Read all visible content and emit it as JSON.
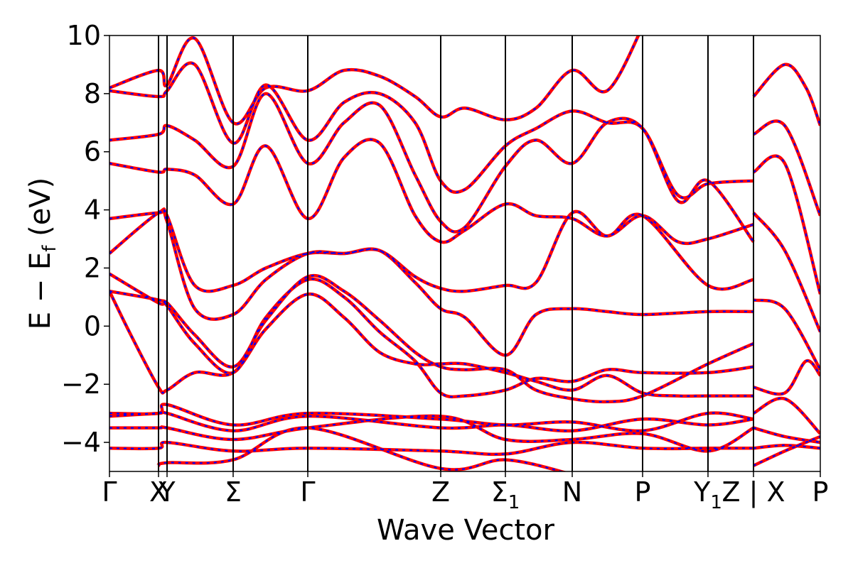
{
  "chart_data": {
    "type": "line",
    "xlabel": "Wave Vector",
    "ylabel": "E − E_f (eV)",
    "ylabel_parts": {
      "main": "E − E",
      "sub": "f",
      "unit": " (eV)"
    },
    "ylim": [
      -5,
      10
    ],
    "yticks": [
      -4,
      -2,
      0,
      2,
      4,
      6,
      8,
      10
    ],
    "ytick_labels": [
      "−4",
      "−2",
      "0",
      "2",
      "4",
      "6",
      "8",
      "10"
    ],
    "xlim": [
      0,
      1
    ],
    "grid": false,
    "kpoints": [
      {
        "label": "Γ",
        "sub": "",
        "x": 0.0
      },
      {
        "label": "X",
        "sub": "",
        "x": 0.069
      },
      {
        "label": "Y",
        "sub": "",
        "x": 0.081
      },
      {
        "label": "Σ",
        "sub": "",
        "x": 0.174
      },
      {
        "label": "Γ",
        "sub": "",
        "x": 0.279
      },
      {
        "label": "Z",
        "sub": "",
        "x": 0.466
      },
      {
        "label": "Σ",
        "sub": "1",
        "x": 0.557
      },
      {
        "label": "N",
        "sub": "",
        "x": 0.651
      },
      {
        "label": "P",
        "sub": "",
        "x": 0.75
      },
      {
        "label": "Y",
        "sub": "1",
        "x": 0.842
      },
      {
        "label": "Z | X",
        "sub": "",
        "x": 0.906
      },
      {
        "label": "P",
        "sub": "",
        "x": 1.0
      }
    ],
    "series": [
      {
        "color": "#ff0000",
        "style": "solid",
        "bands": [
          [
            [
              0,
              1.2
            ],
            [
              0.03,
              -0.3
            ],
            [
              0.069,
              -2.1
            ],
            [
              0.081,
              -2.2
            ],
            [
              0.12,
              -1.6
            ],
            [
              0.174,
              -1.6
            ],
            [
              0.22,
              -0.1
            ],
            [
              0.279,
              1.1
            ],
            [
              0.33,
              0.3
            ],
            [
              0.38,
              -0.9
            ],
            [
              0.43,
              -1.3
            ],
            [
              0.466,
              -1.3
            ],
            [
              0.5,
              -1.3
            ],
            [
              0.557,
              -1.6
            ],
            [
              0.6,
              -1.9
            ],
            [
              0.651,
              -2.2
            ],
            [
              0.7,
              -1.7
            ],
            [
              0.75,
              -2.3
            ],
            [
              0.8,
              -2.4
            ],
            [
              0.842,
              -2.4
            ],
            [
              0.906,
              -2.4
            ]
          ],
          [
            [
              0,
              1.8
            ],
            [
              0.069,
              0.8
            ],
            [
              0.081,
              0.8
            ],
            [
              0.12,
              -0.3
            ],
            [
              0.174,
              -1.4
            ],
            [
              0.22,
              0.2
            ],
            [
              0.279,
              1.7
            ],
            [
              0.33,
              1.2
            ],
            [
              0.38,
              0.2
            ],
            [
              0.43,
              -0.9
            ],
            [
              0.466,
              -1.4
            ],
            [
              0.5,
              -1.5
            ],
            [
              0.557,
              -1.5
            ],
            [
              0.6,
              -2.2
            ],
            [
              0.651,
              -2.5
            ],
            [
              0.7,
              -2.6
            ],
            [
              0.75,
              -2.4
            ],
            [
              0.842,
              -1.3
            ],
            [
              0.906,
              -0.6
            ]
          ],
          [
            [
              0,
              1.2
            ],
            [
              0.069,
              0.9
            ],
            [
              0.081,
              0.7
            ],
            [
              0.12,
              -0.6
            ],
            [
              0.174,
              -1.6
            ],
            [
              0.22,
              0.3
            ],
            [
              0.279,
              1.6
            ],
            [
              0.33,
              1.0
            ],
            [
              0.38,
              -0.2
            ],
            [
              0.43,
              -1.2
            ],
            [
              0.466,
              -2.3
            ],
            [
              0.5,
              -2.4
            ],
            [
              0.557,
              -2.2
            ],
            [
              0.6,
              -1.8
            ],
            [
              0.651,
              -1.9
            ],
            [
              0.7,
              -1.5
            ],
            [
              0.75,
              -1.6
            ],
            [
              0.842,
              -1.6
            ],
            [
              0.906,
              -1.4
            ]
          ],
          [
            [
              0,
              2.5
            ],
            [
              0.069,
              3.9
            ],
            [
              0.081,
              3.6
            ],
            [
              0.12,
              0.6
            ],
            [
              0.174,
              0.4
            ],
            [
              0.22,
              1.6
            ],
            [
              0.279,
              2.5
            ],
            [
              0.33,
              2.5
            ],
            [
              0.38,
              2.6
            ],
            [
              0.43,
              1.5
            ],
            [
              0.466,
              0.6
            ],
            [
              0.5,
              0.3
            ],
            [
              0.557,
              -1.0
            ],
            [
              0.6,
              0.4
            ],
            [
              0.651,
              0.6
            ],
            [
              0.7,
              0.5
            ],
            [
              0.75,
              0.4
            ],
            [
              0.842,
              0.5
            ],
            [
              0.906,
              0.5
            ]
          ],
          [
            [
              0,
              3.7
            ],
            [
              0.069,
              3.9
            ],
            [
              0.081,
              3.8
            ],
            [
              0.12,
              1.4
            ],
            [
              0.174,
              1.4
            ],
            [
              0.22,
              2.0
            ],
            [
              0.279,
              2.5
            ],
            [
              0.33,
              2.5
            ],
            [
              0.38,
              2.6
            ],
            [
              0.43,
              1.7
            ],
            [
              0.466,
              1.3
            ],
            [
              0.5,
              1.2
            ],
            [
              0.557,
              1.4
            ],
            [
              0.6,
              1.5
            ],
            [
              0.651,
              3.9
            ],
            [
              0.7,
              3.1
            ],
            [
              0.75,
              3.8
            ],
            [
              0.842,
              1.4
            ],
            [
              0.906,
              1.6
            ]
          ],
          [
            [
              0,
              5.6
            ],
            [
              0.069,
              5.3
            ],
            [
              0.081,
              5.4
            ],
            [
              0.12,
              5.2
            ],
            [
              0.174,
              4.2
            ],
            [
              0.22,
              6.2
            ],
            [
              0.279,
              3.7
            ],
            [
              0.33,
              5.8
            ],
            [
              0.38,
              6.3
            ],
            [
              0.43,
              3.8
            ],
            [
              0.466,
              2.9
            ],
            [
              0.5,
              3.3
            ],
            [
              0.557,
              4.2
            ],
            [
              0.6,
              3.8
            ],
            [
              0.651,
              3.7
            ],
            [
              0.7,
              3.1
            ],
            [
              0.75,
              3.8
            ],
            [
              0.8,
              2.9
            ],
            [
              0.842,
              3.0
            ],
            [
              0.906,
              3.5
            ]
          ],
          [
            [
              0,
              6.4
            ],
            [
              0.069,
              6.6
            ],
            [
              0.081,
              6.9
            ],
            [
              0.12,
              6.4
            ],
            [
              0.174,
              5.5
            ],
            [
              0.22,
              8.0
            ],
            [
              0.279,
              5.6
            ],
            [
              0.33,
              7.0
            ],
            [
              0.38,
              7.6
            ],
            [
              0.43,
              5.2
            ],
            [
              0.466,
              3.6
            ],
            [
              0.5,
              3.4
            ],
            [
              0.557,
              5.5
            ],
            [
              0.6,
              6.4
            ],
            [
              0.651,
              5.6
            ],
            [
              0.7,
              7.0
            ],
            [
              0.75,
              6.8
            ],
            [
              0.8,
              4.3
            ],
            [
              0.842,
              5.0
            ],
            [
              0.906,
              2.9
            ]
          ],
          [
            [
              0,
              8.1
            ],
            [
              0.069,
              7.9
            ],
            [
              0.081,
              8.1
            ],
            [
              0.12,
              9.0
            ],
            [
              0.174,
              6.3
            ],
            [
              0.22,
              8.3
            ],
            [
              0.279,
              6.4
            ],
            [
              0.33,
              7.7
            ],
            [
              0.38,
              8.0
            ],
            [
              0.43,
              7.0
            ],
            [
              0.466,
              5.0
            ],
            [
              0.5,
              4.7
            ],
            [
              0.557,
              6.2
            ],
            [
              0.6,
              6.8
            ],
            [
              0.651,
              7.4
            ],
            [
              0.7,
              7.0
            ],
            [
              0.75,
              6.8
            ],
            [
              0.8,
              4.5
            ],
            [
              0.842,
              4.9
            ],
            [
              0.906,
              5.0
            ]
          ],
          [
            [
              0,
              8.2
            ],
            [
              0.069,
              8.8
            ],
            [
              0.081,
              8.3
            ],
            [
              0.12,
              9.9
            ],
            [
              0.174,
              7.0
            ],
            [
              0.22,
              8.2
            ],
            [
              0.279,
              8.1
            ],
            [
              0.33,
              8.8
            ],
            [
              0.38,
              8.6
            ],
            [
              0.43,
              7.9
            ],
            [
              0.466,
              7.2
            ],
            [
              0.5,
              7.5
            ],
            [
              0.557,
              7.1
            ],
            [
              0.6,
              7.5
            ],
            [
              0.651,
              8.8
            ],
            [
              0.7,
              8.1
            ],
            [
              0.75,
              10.3
            ]
          ],
          [
            [
              0,
              -3.0
            ],
            [
              0.069,
              -3.0
            ],
            [
              0.081,
              -2.7
            ],
            [
              0.174,
              -3.4
            ],
            [
              0.279,
              -3.0
            ],
            [
              0.466,
              -3.2
            ],
            [
              0.557,
              -3.4
            ],
            [
              0.651,
              -3.3
            ],
            [
              0.75,
              -3.6
            ],
            [
              0.842,
              -3.0
            ],
            [
              0.906,
              -3.2
            ]
          ],
          [
            [
              0,
              -3.1
            ],
            [
              0.069,
              -3.0
            ],
            [
              0.081,
              -3.0
            ],
            [
              0.174,
              -3.6
            ],
            [
              0.279,
              -3.1
            ],
            [
              0.466,
              -3.5
            ],
            [
              0.557,
              -3.4
            ],
            [
              0.651,
              -3.6
            ],
            [
              0.75,
              -3.2
            ],
            [
              0.842,
              -3.4
            ],
            [
              0.906,
              -3.2
            ]
          ],
          [
            [
              0,
              -3.5
            ],
            [
              0.069,
              -3.5
            ],
            [
              0.081,
              -3.5
            ],
            [
              0.174,
              -3.9
            ],
            [
              0.279,
              -3.5
            ],
            [
              0.466,
              -3.1
            ],
            [
              0.557,
              -3.9
            ],
            [
              0.651,
              -3.9
            ],
            [
              0.75,
              -3.7
            ],
            [
              0.842,
              -4.3
            ],
            [
              0.906,
              -3.5
            ]
          ],
          [
            [
              0,
              -4.2
            ],
            [
              0.069,
              -4.2
            ],
            [
              0.081,
              -4.0
            ],
            [
              0.174,
              -4.3
            ],
            [
              0.279,
              -4.2
            ],
            [
              0.466,
              -4.3
            ],
            [
              0.557,
              -4.4
            ],
            [
              0.651,
              -4.0
            ],
            [
              0.75,
              -4.2
            ],
            [
              0.842,
              -4.2
            ],
            [
              0.906,
              -4.2
            ]
          ],
          [
            [
              0.069,
              -4.8
            ],
            [
              0.081,
              -4.7
            ],
            [
              0.174,
              -4.6
            ],
            [
              0.279,
              -3.5
            ],
            [
              0.466,
              -4.9
            ],
            [
              0.557,
              -4.6
            ],
            [
              0.651,
              -5.1
            ]
          ],
          [
            [
              0.906,
              -3.0
            ],
            [
              0.95,
              -2.5
            ],
            [
              1.0,
              -3.7
            ]
          ],
          [
            [
              0.906,
              -2.1
            ],
            [
              0.95,
              -2.3
            ],
            [
              0.98,
              -1.2
            ],
            [
              1.0,
              -1.7
            ]
          ],
          [
            [
              0.906,
              0.9
            ],
            [
              0.95,
              0.6
            ],
            [
              1.0,
              -1.5
            ]
          ],
          [
            [
              0.906,
              3.9
            ],
            [
              0.95,
              2.6
            ],
            [
              1.0,
              -0.2
            ]
          ],
          [
            [
              0.906,
              5.3
            ],
            [
              0.95,
              5.6
            ],
            [
              1.0,
              1.1
            ]
          ],
          [
            [
              0.906,
              6.6
            ],
            [
              0.95,
              6.9
            ],
            [
              1.0,
              3.8
            ]
          ],
          [
            [
              0.906,
              7.9
            ],
            [
              0.95,
              9.0
            ],
            [
              0.98,
              8.2
            ],
            [
              1.0,
              6.9
            ]
          ],
          [
            [
              0.906,
              -3.5
            ],
            [
              0.95,
              -3.8
            ],
            [
              1.0,
              -4.0
            ]
          ],
          [
            [
              0.906,
              -4.8
            ],
            [
              0.95,
              -4.3
            ],
            [
              1.0,
              -3.8
            ]
          ],
          [
            [
              0.906,
              -4.2
            ],
            [
              0.95,
              -4.1
            ],
            [
              1.0,
              -4.2
            ]
          ]
        ]
      },
      {
        "color": "#0000ff",
        "style": "dotted",
        "bands": "same as red"
      }
    ]
  }
}
